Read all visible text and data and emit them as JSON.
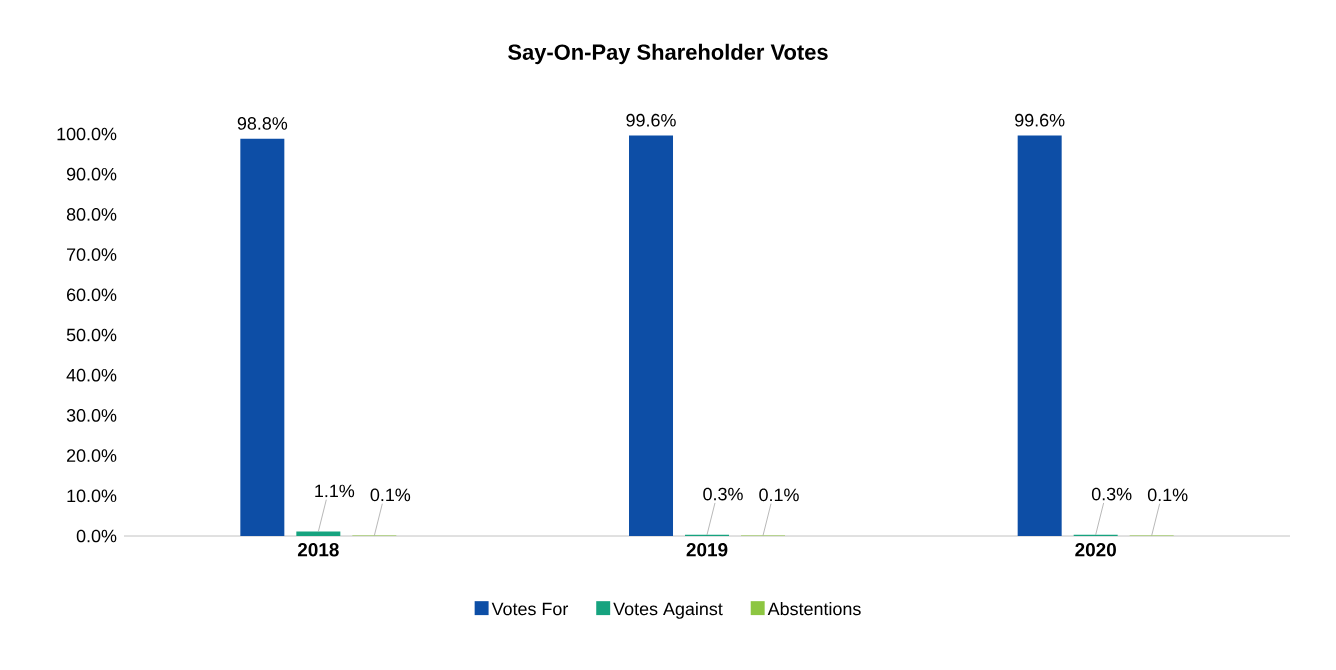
{
  "chart_data": {
    "type": "bar",
    "title": "Say-On-Pay Shareholder Votes",
    "categories": [
      "2018",
      "2019",
      "2020"
    ],
    "series": [
      {
        "name": "Votes For",
        "color": "#0d4ea6",
        "values": [
          98.8,
          99.6,
          99.6
        ],
        "value_labels": [
          "98.8%",
          "99.6%",
          "99.6%"
        ]
      },
      {
        "name": "Votes Against",
        "color": "#16a37f",
        "values": [
          1.1,
          0.3,
          0.3
        ],
        "value_labels": [
          "1.1%",
          "0.3%",
          "0.3%"
        ]
      },
      {
        "name": "Abstentions",
        "color": "#8dc641",
        "values": [
          0.1,
          0.1,
          0.1
        ],
        "value_labels": [
          "0.1%",
          "0.1%",
          "0.1%"
        ]
      }
    ],
    "ylim": [
      0,
      100
    ],
    "yticks": [
      {
        "value": 0,
        "label": "0.0%"
      },
      {
        "value": 10,
        "label": "10.0%"
      },
      {
        "value": 20,
        "label": "20.0%"
      },
      {
        "value": 30,
        "label": "30.0%"
      },
      {
        "value": 40,
        "label": "40.0%"
      },
      {
        "value": 50,
        "label": "50.0%"
      },
      {
        "value": 60,
        "label": "60.0%"
      },
      {
        "value": 70,
        "label": "70.0%"
      },
      {
        "value": 80,
        "label": "80.0%"
      },
      {
        "value": 90,
        "label": "90.0%"
      },
      {
        "value": 100,
        "label": "100.0%"
      }
    ],
    "grid": false,
    "legend": "bottom"
  }
}
